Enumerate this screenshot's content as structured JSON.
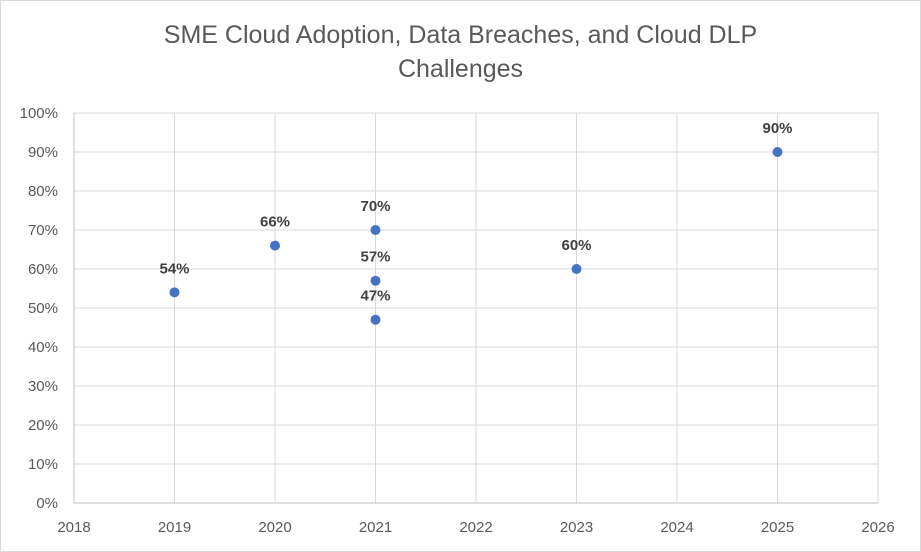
{
  "chart_data": {
    "type": "scatter",
    "title": "SME Cloud Adoption, Data Breaches, and Cloud DLP Challenges",
    "title_lines": [
      "SME Cloud Adoption, Data Breaches, and Cloud DLP",
      "Challenges"
    ],
    "xlabel": "",
    "ylabel": "",
    "xlim": [
      2018,
      2026
    ],
    "ylim": [
      0,
      1
    ],
    "x_ticks": [
      2018,
      2019,
      2020,
      2021,
      2022,
      2023,
      2024,
      2025,
      2026
    ],
    "y_ticks": [
      0,
      0.1,
      0.2,
      0.3,
      0.4,
      0.5,
      0.6,
      0.7,
      0.8,
      0.9,
      1.0
    ],
    "y_tick_labels": [
      "0%",
      "10%",
      "20%",
      "30%",
      "40%",
      "50%",
      "60%",
      "70%",
      "80%",
      "90%",
      "100%"
    ],
    "grid": true,
    "legend": "none",
    "marker_color": "#4472c4",
    "points": [
      {
        "x": 2019,
        "y": 0.54,
        "label": "54%"
      },
      {
        "x": 2020,
        "y": 0.66,
        "label": "66%"
      },
      {
        "x": 2021,
        "y": 0.7,
        "label": "70%"
      },
      {
        "x": 2021,
        "y": 0.57,
        "label": "57%"
      },
      {
        "x": 2021,
        "y": 0.47,
        "label": "47%"
      },
      {
        "x": 2023,
        "y": 0.6,
        "label": "60%"
      },
      {
        "x": 2025,
        "y": 0.9,
        "label": "90%"
      }
    ]
  }
}
